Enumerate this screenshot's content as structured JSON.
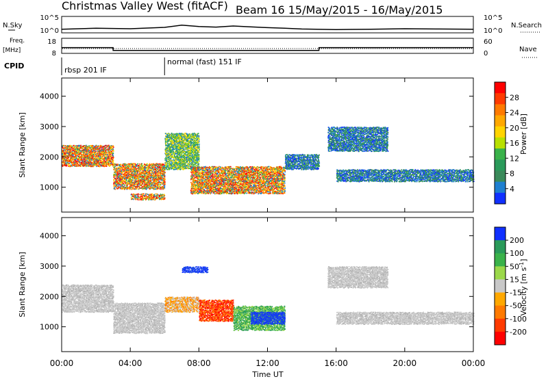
{
  "header": {
    "radar_title": "Christmas Valley West (fitACF)",
    "beam_date": "Beam 16  15/May/2015 - 16/May/2015"
  },
  "strip_panels": {
    "nsky": {
      "label": "N.Sky",
      "left_ticks": [
        "10^5",
        "10^0"
      ],
      "right_ticks": [
        "10^5",
        "10^0"
      ],
      "right_label": "N.Search",
      "series": [
        {
          "t": 0,
          "v": 0.8
        },
        {
          "t": 2,
          "v": 1.2
        },
        {
          "t": 4,
          "v": 1.0
        },
        {
          "t": 6,
          "v": 1.5
        },
        {
          "t": 7,
          "v": 2.3
        },
        {
          "t": 8,
          "v": 1.8
        },
        {
          "t": 9,
          "v": 1.6
        },
        {
          "t": 10,
          "v": 2.0
        },
        {
          "t": 11,
          "v": 1.7
        },
        {
          "t": 12,
          "v": 1.4
        },
        {
          "t": 13,
          "v": 1.2
        },
        {
          "t": 14,
          "v": 0.9
        },
        {
          "t": 16,
          "v": 0.7
        },
        {
          "t": 18,
          "v": 0.8
        },
        {
          "t": 20,
          "v": 1.0
        },
        {
          "t": 22,
          "v": 0.9
        },
        {
          "t": 24,
          "v": 0.8
        }
      ]
    },
    "freq": {
      "label": "Freq.",
      "unit": "[MHz]",
      "left_ticks": [
        "18",
        "8"
      ],
      "right_ticks": [
        "60",
        "0"
      ],
      "right_label": "Nave",
      "series": [
        {
          "t": 0,
          "v": 11.7
        },
        {
          "t": 3,
          "v": 11.7
        },
        {
          "t": 3,
          "v": 9.6
        },
        {
          "t": 15,
          "v": 9.6
        },
        {
          "t": 15,
          "v": 11.7
        },
        {
          "t": 24,
          "v": 11.7
        }
      ]
    },
    "cpid": {
      "label": "CPID",
      "modes": [
        "rbsp 201 IF",
        "normal (fast) 151 IF"
      ],
      "switch_hour": 6
    }
  },
  "chart_data": [
    {
      "type": "heatmap",
      "name": "power",
      "xlabel": "",
      "ylabel": "Slant Range [km]",
      "xlim_hours": [
        0,
        24
      ],
      "ylim": [
        180,
        4600
      ],
      "yticks": [
        "1000",
        "2000",
        "3000",
        "4000"
      ],
      "colorbar": {
        "label": "Power [dB]",
        "ticks": [
          "28",
          "24",
          "20",
          "16",
          "12",
          "8",
          "4"
        ],
        "colors": [
          "#ff0000",
          "#ff3a00",
          "#ff7a00",
          "#ffa800",
          "#ffd400",
          "#b8e000",
          "#3ab24a",
          "#2a9a5a",
          "#3a8a5a",
          "#1e7fd0",
          "#1030ff"
        ]
      },
      "bands": [
        {
          "t0": 0.0,
          "t1": 3.0,
          "r0": 1700,
          "r1": 2400,
          "level": "high"
        },
        {
          "t0": 3.0,
          "t1": 6.0,
          "r0": 950,
          "r1": 1800,
          "level": "high"
        },
        {
          "t0": 4.0,
          "t1": 6.0,
          "r0": 600,
          "r1": 800,
          "level": "high"
        },
        {
          "t0": 6.0,
          "t1": 8.0,
          "r0": 1600,
          "r1": 2800,
          "level": "mid"
        },
        {
          "t0": 7.5,
          "t1": 13.0,
          "r0": 800,
          "r1": 1700,
          "level": "high"
        },
        {
          "t0": 13.0,
          "t1": 15.0,
          "r0": 1600,
          "r1": 2100,
          "level": "low"
        },
        {
          "t0": 15.5,
          "t1": 19.0,
          "r0": 2200,
          "r1": 3000,
          "level": "low"
        },
        {
          "t0": 16.0,
          "t1": 24.0,
          "r0": 1200,
          "r1": 1600,
          "level": "low"
        }
      ]
    },
    {
      "type": "heatmap",
      "name": "velocity",
      "xlabel": "Time UT",
      "ylabel": "Slant Range [km]",
      "xlim_hours": [
        0,
        24
      ],
      "ylim": [
        180,
        4600
      ],
      "yticks": [
        "1000",
        "2000",
        "3000",
        "4000"
      ],
      "xticks": [
        "00:00",
        "04:00",
        "08:00",
        "12:00",
        "16:00",
        "20:00",
        "00:00"
      ],
      "colorbar": {
        "label": "Velocity [m s^-1]",
        "ticks": [
          "200",
          "100",
          "50",
          "15",
          "-15",
          "-50",
          "-100",
          "-200"
        ],
        "colors": [
          "#1030ff",
          "#2a9a5a",
          "#3ab24a",
          "#9bd84a",
          "#c8c8c8",
          "#ffa800",
          "#ff7a00",
          "#ff3a00",
          "#ff0000"
        ]
      },
      "bands": [
        {
          "t0": 0.0,
          "t1": 3.0,
          "r0": 1500,
          "r1": 2400,
          "level": "gray"
        },
        {
          "t0": 3.0,
          "t1": 6.0,
          "r0": 800,
          "r1": 1800,
          "level": "gray"
        },
        {
          "t0": 6.0,
          "t1": 8.0,
          "r0": 1500,
          "r1": 2000,
          "level": "orange"
        },
        {
          "t0": 8.0,
          "t1": 10.0,
          "r0": 1200,
          "r1": 1900,
          "level": "red"
        },
        {
          "t0": 10.0,
          "t1": 13.0,
          "r0": 900,
          "r1": 1700,
          "level": "green"
        },
        {
          "t0": 11.0,
          "t1": 13.0,
          "r0": 1100,
          "r1": 1500,
          "level": "blue"
        },
        {
          "t0": 7.0,
          "t1": 8.5,
          "r0": 2800,
          "r1": 3000,
          "level": "blue"
        },
        {
          "t0": 15.5,
          "t1": 19.0,
          "r0": 2300,
          "r1": 3000,
          "level": "gray"
        },
        {
          "t0": 16.0,
          "t1": 24.0,
          "r0": 1100,
          "r1": 1500,
          "level": "gray"
        }
      ]
    }
  ]
}
